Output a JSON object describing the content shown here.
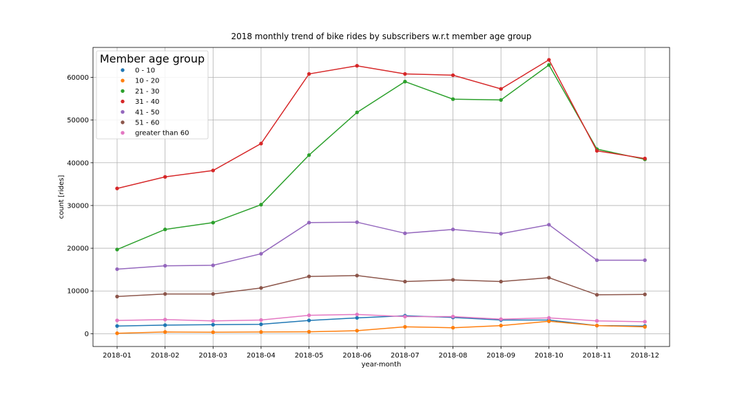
{
  "chart_data": {
    "type": "line",
    "title": "2018 monthly trend of bike rides by subscribers w.r.t member age group",
    "xlabel": "year-month",
    "ylabel": "count [rides]",
    "categories": [
      "2018-01",
      "2018-02",
      "2018-03",
      "2018-04",
      "2018-05",
      "2018-06",
      "2018-07",
      "2018-08",
      "2018-09",
      "2018-10",
      "2018-11",
      "2018-12"
    ],
    "ylim": [
      -3000,
      67000
    ],
    "yticks": [
      0,
      10000,
      20000,
      30000,
      40000,
      50000,
      60000
    ],
    "grid": true,
    "legend": {
      "title": "Member age group",
      "placement": "top-left"
    },
    "series": [
      {
        "name": "0 - 10",
        "color": "#1f77b4",
        "values": [
          1800,
          2000,
          2100,
          2200,
          3100,
          3700,
          4200,
          3800,
          3200,
          3200,
          1900,
          1800
        ]
      },
      {
        "name": "10 - 20",
        "color": "#ff7f0e",
        "values": [
          100,
          400,
          350,
          400,
          450,
          700,
          1600,
          1400,
          1900,
          2900,
          1900,
          1600
        ]
      },
      {
        "name": "21 - 30",
        "color": "#2ca02c",
        "values": [
          19700,
          24400,
          26000,
          30200,
          41800,
          51800,
          59000,
          54900,
          54700,
          62900,
          43200,
          40800
        ]
      },
      {
        "name": "31 - 40",
        "color": "#d62728",
        "values": [
          34000,
          36700,
          38200,
          44500,
          60800,
          62700,
          60800,
          60500,
          57300,
          64100,
          42800,
          41000
        ]
      },
      {
        "name": "41 - 50",
        "color": "#9467bd",
        "values": [
          15100,
          15900,
          16000,
          18700,
          26000,
          26100,
          23500,
          24400,
          23400,
          25500,
          17200,
          17200
        ]
      },
      {
        "name": "51 - 60",
        "color": "#8c564b",
        "values": [
          8700,
          9300,
          9300,
          10700,
          13400,
          13600,
          12200,
          12600,
          12200,
          13100,
          9100,
          9200
        ]
      },
      {
        "name": "greater than 60",
        "color": "#e377c2",
        "values": [
          3100,
          3300,
          3000,
          3200,
          4300,
          4500,
          4000,
          4000,
          3400,
          3700,
          3000,
          2800
        ]
      }
    ]
  }
}
